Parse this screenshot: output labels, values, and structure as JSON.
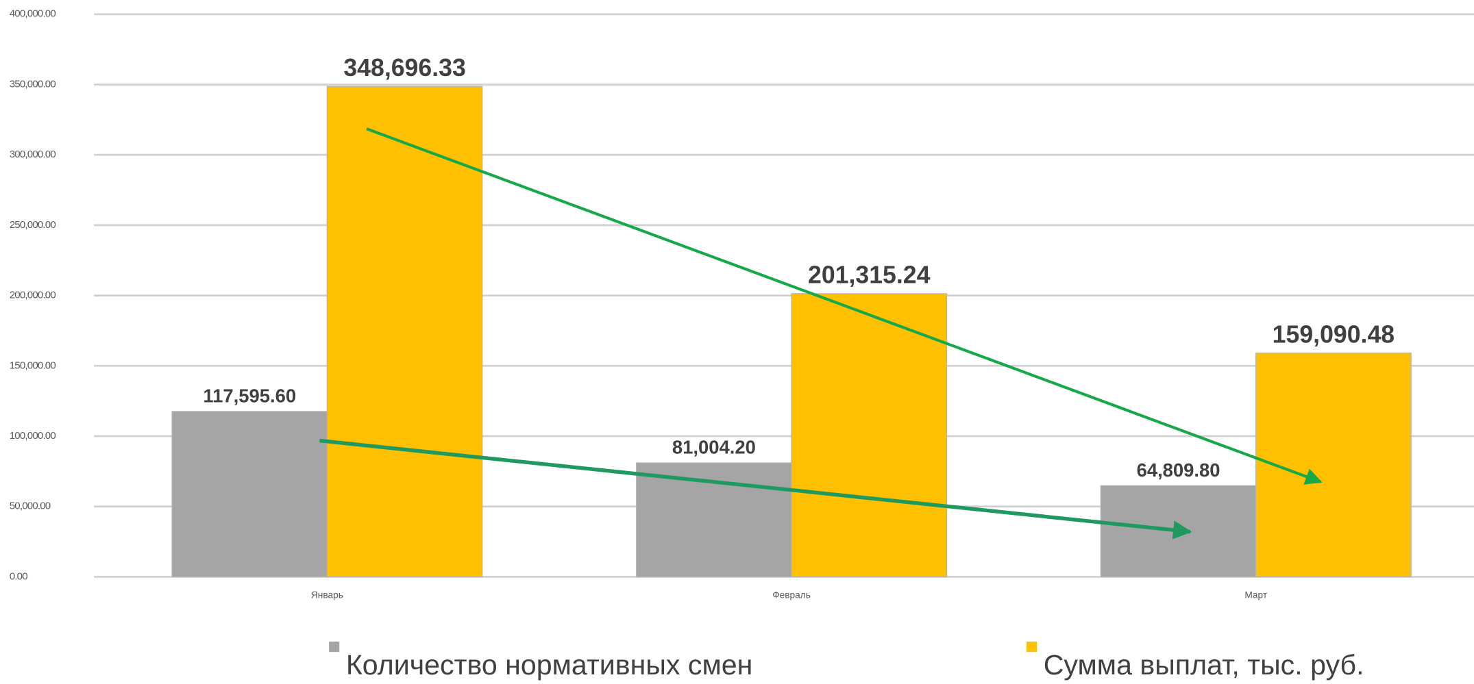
{
  "chart_data": {
    "type": "bar",
    "categories": [
      "Январь",
      "Февраль",
      "Март"
    ],
    "series": [
      {
        "name": "Количество нормативных смен",
        "color": "#a5a5a5",
        "values": [
          117595.6,
          81004.2,
          64809.8
        ],
        "value_labels": [
          "117,595.60",
          "81,004.20",
          "64,809.80"
        ]
      },
      {
        "name": "Сумма выплат, тыс. руб.",
        "color": "#ffc000",
        "values": [
          348696.33,
          201315.24,
          159090.48
        ],
        "value_labels": [
          "348,696.33",
          "201,315.24",
          "159,090.48"
        ]
      }
    ],
    "ylim": [
      0,
      400000
    ],
    "yticks": [
      {
        "value": 0,
        "label": "0.00"
      },
      {
        "value": 50000,
        "label": "50,000.00"
      },
      {
        "value": 100000,
        "label": "100,000.00"
      },
      {
        "value": 150000,
        "label": "150,000.00"
      },
      {
        "value": 200000,
        "label": "200,000.00"
      },
      {
        "value": 250000,
        "label": "250,000.00"
      },
      {
        "value": 300000,
        "label": "300,000.00"
      },
      {
        "value": 350000,
        "label": "350,000.00"
      },
      {
        "value": 400000,
        "label": "400,000.00"
      }
    ],
    "grid": true
  }
}
